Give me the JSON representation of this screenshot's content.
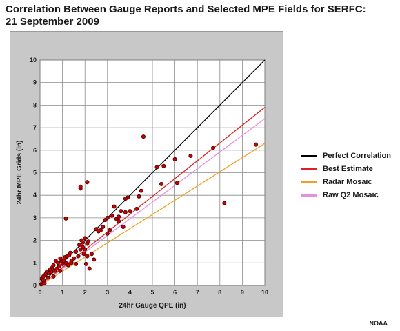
{
  "header": {
    "title_line1": "Correlation Between Gauge Reports and Selected MPE Fields for SERFC:",
    "title_line2": "21 September 2009"
  },
  "credit": "NOAA",
  "chart_data": {
    "type": "scatter",
    "xlabel": "24hr Gauge QPE (in)",
    "ylabel": "24hr MPE Grids (in)",
    "xlim": [
      0,
      10
    ],
    "ylim": [
      0,
      10
    ],
    "xticks": [
      0,
      1,
      2,
      3,
      4,
      5,
      6,
      7,
      8,
      9,
      10
    ],
    "yticks": [
      0,
      1,
      2,
      3,
      4,
      5,
      6,
      7,
      8,
      9,
      10
    ],
    "grid": true,
    "legend_position": "right",
    "lines": [
      {
        "name": "Perfect Correlation",
        "color": "#000000",
        "x": [
          0,
          10
        ],
        "y": [
          0,
          10
        ]
      },
      {
        "name": "Best Estimate",
        "color": "#e02020",
        "x": [
          0,
          10
        ],
        "y": [
          0,
          7.9
        ]
      },
      {
        "name": "Radar Mosaic",
        "color": "#f0a020",
        "x": [
          0,
          10
        ],
        "y": [
          0,
          6.3
        ]
      },
      {
        "name": "Raw Q2 Mosaic",
        "color": "#e890e0",
        "x": [
          0,
          10
        ],
        "y": [
          0,
          7.4
        ]
      }
    ],
    "points": {
      "color": "#cc0000",
      "x": [
        0.05,
        0.08,
        0.1,
        0.12,
        0.15,
        0.18,
        0.2,
        0.25,
        0.3,
        0.35,
        0.4,
        0.45,
        0.5,
        0.55,
        0.6,
        0.65,
        0.7,
        0.75,
        0.8,
        0.85,
        0.9,
        0.95,
        1.0,
        1.05,
        1.1,
        1.15,
        1.2,
        1.25,
        1.3,
        1.35,
        1.4,
        1.5,
        1.6,
        1.7,
        1.75,
        1.8,
        1.85,
        1.9,
        1.95,
        2.0,
        2.0,
        2.05,
        2.1,
        2.1,
        2.15,
        2.2,
        2.4,
        2.5,
        2.6,
        2.7,
        2.8,
        2.9,
        3.0,
        3.1,
        3.2,
        3.3,
        3.4,
        3.5,
        3.6,
        3.7,
        3.8,
        3.9,
        4.0,
        4.3,
        4.4,
        4.5,
        5.2,
        5.4,
        5.5,
        6.0,
        6.1,
        6.7,
        7.7,
        8.2,
        9.6,
        1.15,
        1.8,
        1.8,
        2.1,
        0.15,
        0.9,
        1.6,
        2.3,
        3.0,
        3.5,
        3.8,
        4.6,
        1.4,
        0.6,
        1.9
      ],
      "y": [
        0.05,
        0.3,
        0.1,
        0.15,
        0.4,
        0.2,
        0.1,
        0.5,
        0.6,
        0.35,
        0.55,
        0.7,
        0.6,
        0.8,
        0.9,
        0.65,
        1.1,
        0.75,
        1.0,
        0.85,
        1.2,
        1.05,
        0.95,
        1.1,
        1.25,
        1.0,
        1.3,
        0.9,
        1.35,
        1.45,
        1.1,
        1.2,
        1.5,
        1.3,
        1.8,
        1.6,
        2.0,
        1.7,
        1.4,
        1.6,
        2.1,
        0.95,
        1.85,
        1.3,
        1.95,
        0.75,
        1.15,
        2.5,
        2.4,
        2.45,
        2.6,
        2.9,
        3.0,
        2.45,
        3.1,
        3.5,
        2.95,
        3.05,
        3.3,
        2.6,
        3.25,
        3.9,
        3.3,
        3.4,
        3.95,
        4.2,
        5.25,
        4.5,
        5.3,
        5.6,
        4.55,
        5.75,
        6.1,
        3.65,
        6.25,
        2.97,
        4.3,
        4.38,
        4.58,
        0.25,
        0.65,
        0.95,
        1.4,
        2.3,
        2.85,
        3.85,
        6.6,
        1.0,
        0.4,
        1.9
      ]
    }
  }
}
